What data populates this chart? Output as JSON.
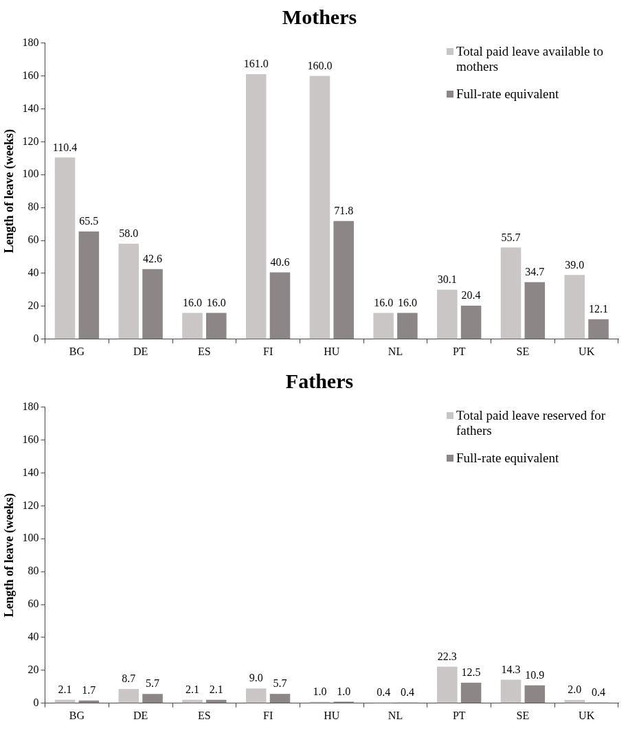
{
  "chart_data": [
    {
      "type": "bar",
      "title": "Mothers",
      "ylabel": "Length of leave (weeks)",
      "categories": [
        "BG",
        "DE",
        "ES",
        "FI",
        "HU",
        "NL",
        "PT",
        "SE",
        "UK"
      ],
      "series": [
        {
          "name": "Total paid leave available to mothers",
          "color": "#cbc6c6",
          "values": [
            110.4,
            58.0,
            16.0,
            161.0,
            160.0,
            16.0,
            30.1,
            55.7,
            39.0
          ],
          "value_labels": [
            "110.4",
            "58.0",
            "16.0",
            "161.0",
            "160.0",
            "16.0",
            "30.1",
            "55.7",
            "39.0"
          ]
        },
        {
          "name": "Full-rate equivalent",
          "color": "#8c8686",
          "values": [
            65.5,
            42.6,
            16.0,
            40.6,
            71.8,
            16.0,
            20.4,
            34.7,
            12.1
          ],
          "value_labels": [
            "65.5",
            "42.6",
            "16.0",
            "40.6",
            "71.8",
            "16.0",
            "20.4",
            "34.7",
            "12.1"
          ]
        }
      ],
      "ylim": [
        0,
        180
      ],
      "yticks": [
        0,
        20,
        40,
        60,
        80,
        100,
        120,
        140,
        160,
        180
      ],
      "grid": false,
      "legend": "top right"
    },
    {
      "type": "bar",
      "title": "Fathers",
      "ylabel": "Length of leave (weeks)",
      "categories": [
        "BG",
        "DE",
        "ES",
        "FI",
        "HU",
        "NL",
        "PT",
        "SE",
        "UK"
      ],
      "series": [
        {
          "name": "Total paid leave reserved for fathers",
          "color": "#cbc6c6",
          "values": [
            2.1,
            8.7,
            2.1,
            9.0,
            1.0,
            0.4,
            22.3,
            14.3,
            2.0
          ],
          "value_labels": [
            "2.1",
            "8.7",
            "2.1",
            "9.0",
            "1.0",
            "0.4",
            "22.3",
            "14.3",
            "2.0"
          ]
        },
        {
          "name": "Full-rate equivalent",
          "color": "#8c8686",
          "values": [
            1.7,
            5.7,
            2.1,
            5.7,
            1.0,
            0.4,
            12.5,
            10.9,
            0.4
          ],
          "value_labels": [
            "1.7",
            "5.7",
            "2.1",
            "5.7",
            "1.0",
            "0.4",
            "12.5",
            "10.9",
            "0.4"
          ]
        }
      ],
      "ylim": [
        0,
        180
      ],
      "yticks": [
        0,
        20,
        40,
        60,
        80,
        100,
        120,
        140,
        160,
        180
      ],
      "grid": false,
      "legend": "top right"
    }
  ]
}
